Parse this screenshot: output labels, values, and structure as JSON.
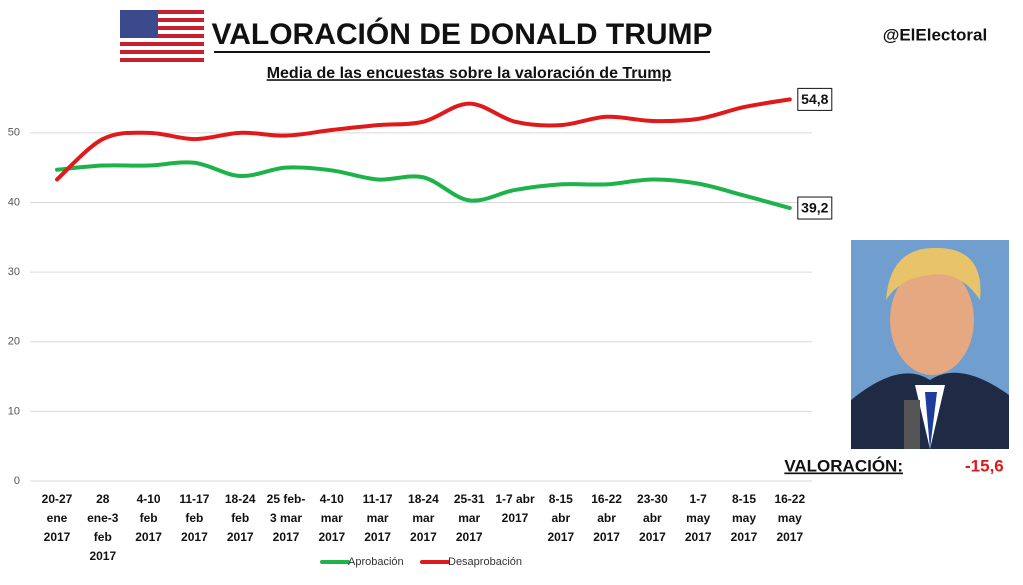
{
  "chart_data": {
    "type": "line",
    "title": "VALORACIÓN DE DONALD TRUMP",
    "subtitle": "Media de las encuestas sobre la valoración de Trump",
    "source": "@ElElectoral",
    "rating_label": "VALORACIÓN:",
    "rating_value": "-15,6",
    "categories": [
      "20-27\nene\n2017",
      "28\nene-3\nfeb\n2017",
      "4-10\nfeb\n2017",
      "11-17\nfeb\n2017",
      "18-24\nfeb\n2017",
      "25 feb-\n3 mar\n2017",
      "4-10\nmar\n2017",
      "11-17\nmar\n2017",
      "18-24\nmar\n2017",
      "25-31\nmar\n2017",
      "1-7 abr\n2017",
      "8-15\nabr\n2017",
      "16-22\nabr\n2017",
      "23-30\nabr\n2017",
      "1-7\nmay\n2017",
      "8-15\nmay\n2017",
      "16-22\nmay\n2017"
    ],
    "series": [
      {
        "name": "Aprobación",
        "color": "#1db34a",
        "values": [
          44.7,
          45.3,
          45.3,
          45.7,
          43.8,
          45.0,
          44.6,
          43.3,
          43.6,
          40.3,
          41.8,
          42.6,
          42.6,
          43.3,
          42.7,
          41.0,
          39.2
        ],
        "value_labels": [
          null,
          null,
          null,
          null,
          null,
          null,
          null,
          null,
          null,
          null,
          null,
          null,
          null,
          null,
          null,
          null,
          "39,2"
        ]
      },
      {
        "name": "Desaprobación",
        "color": "#e0191b",
        "values": [
          43.3,
          49.1,
          50.0,
          49.1,
          50.0,
          49.6,
          50.4,
          51.1,
          51.6,
          54.2,
          51.6,
          51.1,
          52.3,
          51.7,
          52.0,
          53.7,
          54.8
        ],
        "value_labels": [
          null,
          null,
          null,
          null,
          null,
          null,
          null,
          null,
          null,
          null,
          null,
          null,
          null,
          null,
          null,
          null,
          "54,8"
        ]
      }
    ],
    "ylim": [
      0,
      55
    ],
    "yticks": [
      0,
      10,
      20,
      30,
      40,
      50
    ],
    "grid": true
  }
}
